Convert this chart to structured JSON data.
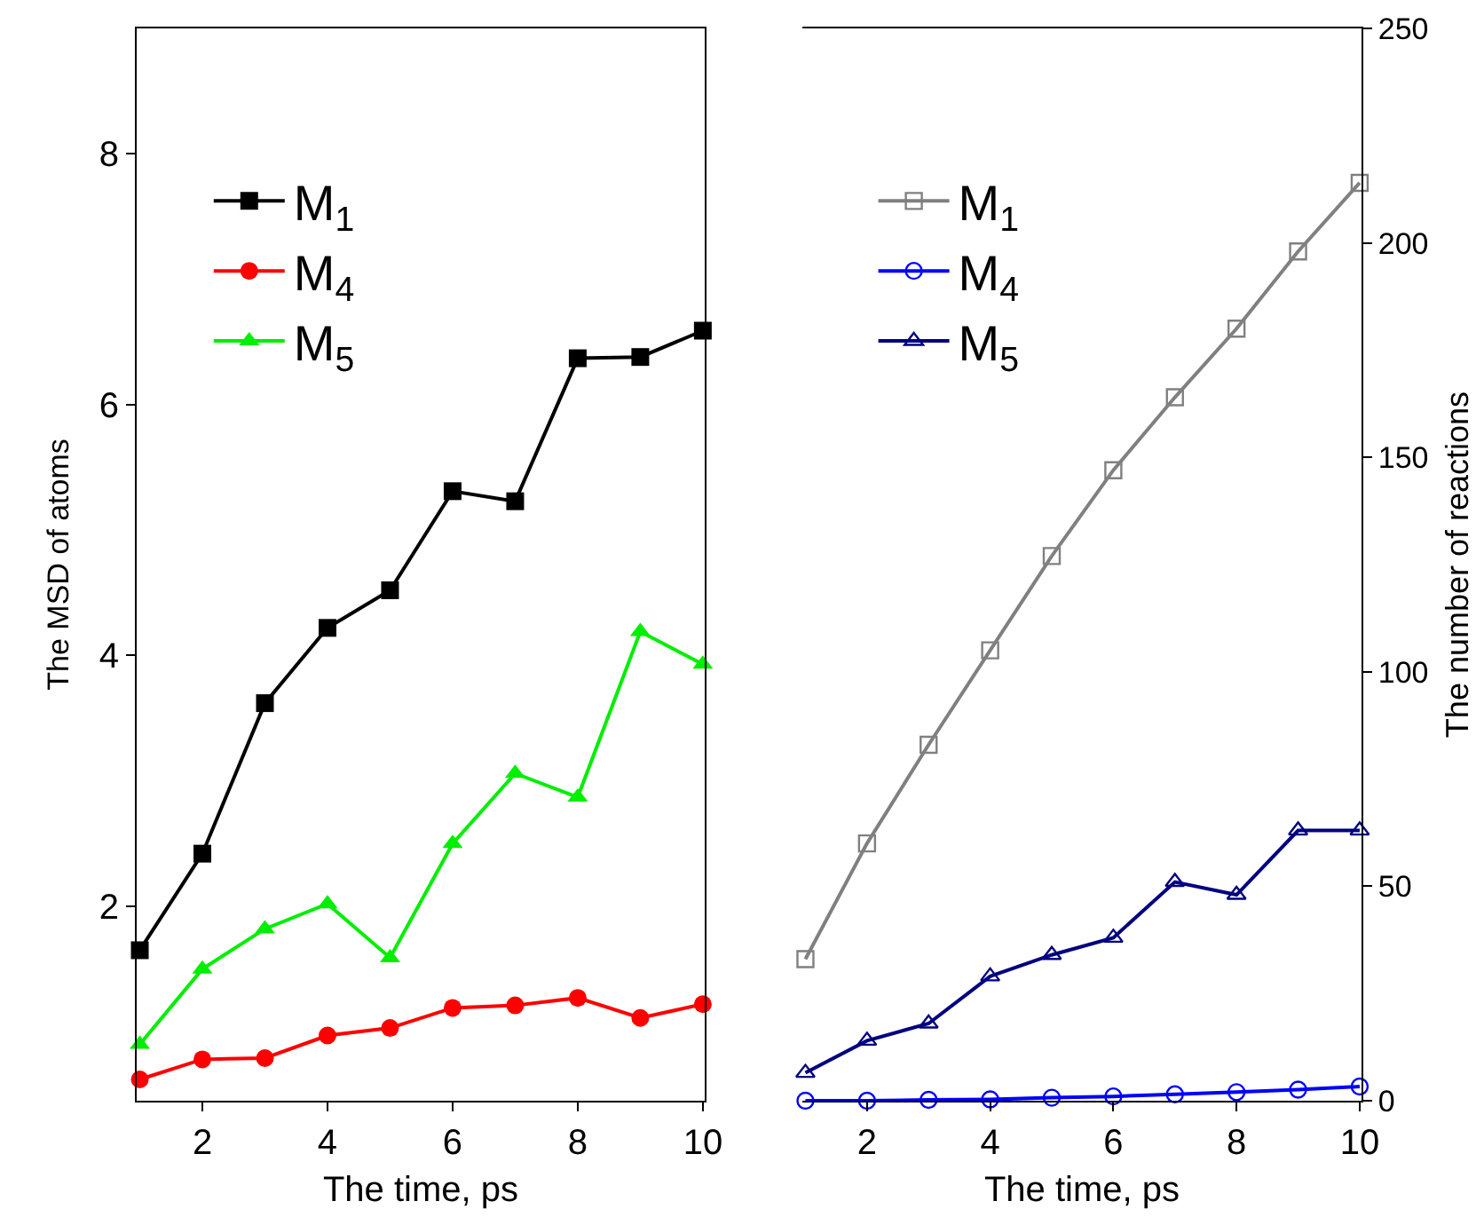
{
  "chart_data": [
    {
      "type": "line",
      "xlabel": "The time, ps",
      "ylabel": "The MSD of atoms",
      "x": [
        1,
        2,
        3,
        4,
        5,
        6,
        7,
        8,
        9,
        10
      ],
      "xlim": [
        0.95,
        10.03
      ],
      "xticks": [
        2,
        4,
        6,
        8,
        10
      ],
      "ylim": [
        0.45,
        9
      ],
      "yticks": [
        2,
        4,
        6,
        8
      ],
      "grid": false,
      "legend": "top left",
      "line_style": "solid",
      "series": [
        {
          "name": "M$_{1}$",
          "color": "#000000",
          "marker": "square",
          "values": [
            1.65,
            2.42,
            3.62,
            4.22,
            4.52,
            5.31,
            5.23,
            6.37,
            6.38,
            6.59
          ]
        },
        {
          "name": "M$_{4}$",
          "color": "#ff0000",
          "marker": "circle",
          "values": [
            0.62,
            0.78,
            0.79,
            0.97,
            1.03,
            1.19,
            1.21,
            1.27,
            1.11,
            1.22
          ]
        },
        {
          "name": "M$_{5}$",
          "color": "#00ee00",
          "marker": "triangle",
          "values": [
            0.9,
            1.5,
            1.82,
            2.02,
            1.59,
            2.5,
            3.06,
            2.87,
            4.19,
            3.93
          ]
        }
      ]
    },
    {
      "type": "line",
      "xlabel": "The time, ps",
      "y2label": "The number of reactions",
      "x": [
        1,
        2,
        3,
        4,
        5,
        6,
        7,
        8,
        9,
        10
      ],
      "xlim": [
        0.95,
        10.03
      ],
      "xticks": [
        2,
        4,
        6,
        8,
        10
      ],
      "y2lim": [
        0,
        250
      ],
      "y2ticks": [
        0,
        50,
        100,
        150,
        200,
        250
      ],
      "grid": false,
      "legend": "top left",
      "line_style": "solid",
      "series": [
        {
          "name": "M$_{1}$",
          "color": "#808080",
          "marker": "square",
          "axis": "y2",
          "values": [
            33,
            60,
            83,
            105,
            127,
            147,
            164,
            180,
            198,
            214
          ]
        },
        {
          "name": "M$_{4}$",
          "color": "#0000ff",
          "marker": "circle",
          "axis": "y2",
          "values": [
            0,
            0,
            0.2,
            0.3,
            0.7,
            1,
            1.5,
            2,
            2.6,
            3.3
          ]
        },
        {
          "name": "M$_{5}$",
          "color": "#000080",
          "marker": "triangle",
          "axis": "y2",
          "values": [
            6.5,
            14,
            18,
            29,
            34,
            38,
            51,
            48,
            63,
            63
          ]
        }
      ]
    }
  ]
}
